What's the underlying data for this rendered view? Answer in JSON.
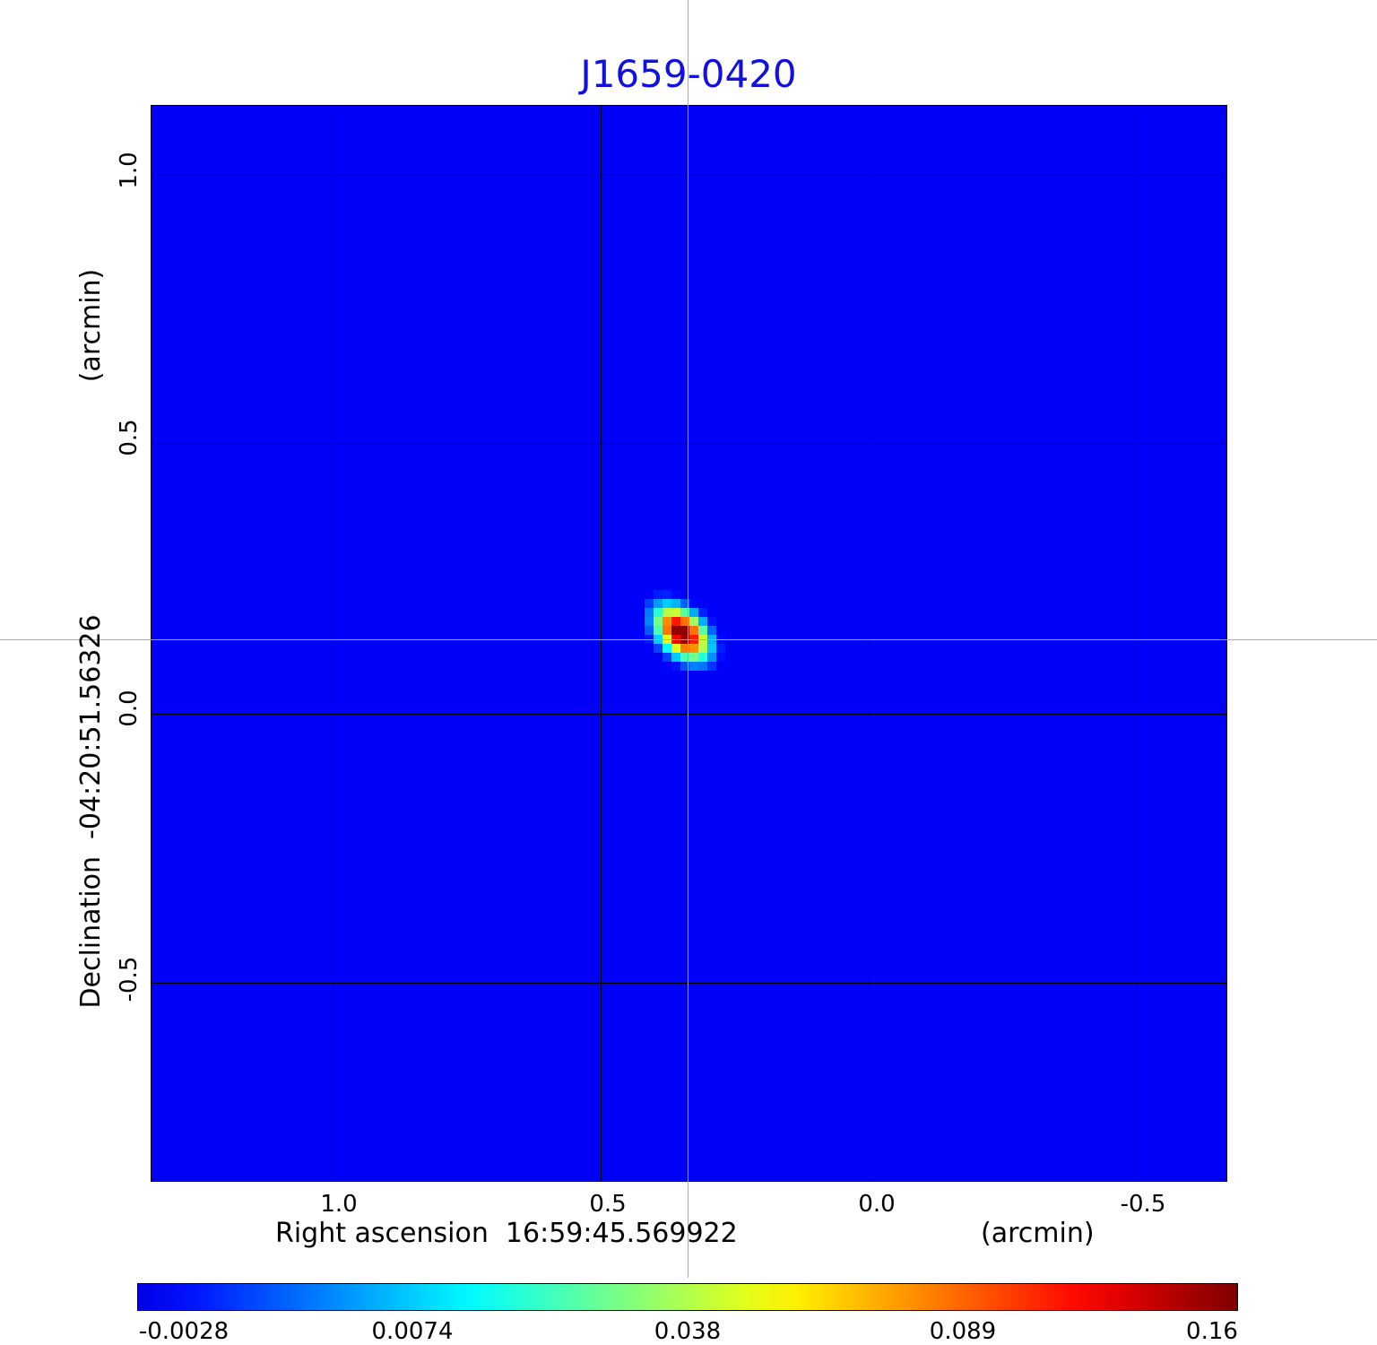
{
  "chart_data": {
    "type": "heatmap",
    "title": "J1659-0420",
    "xlabel": "Right ascension  16:59:45.569922",
    "xunit": "(arcmin)",
    "ylabel": "Declination  -04:20:51.56326",
    "yunit": "(arcmin)",
    "x_ticks": [
      "1.0",
      "0.5",
      "0.0",
      "-0.5"
    ],
    "x_tick_values": [
      1.0,
      0.5,
      0.0,
      -0.5
    ],
    "y_ticks": [
      "1.0",
      "0.5",
      "0.0",
      "-0.5"
    ],
    "y_tick_values": [
      1.0,
      0.5,
      0.0,
      -0.5
    ],
    "xlim": [
      1.34,
      -0.67
    ],
    "ylim": [
      -0.87,
      1.13
    ],
    "grid": true,
    "crosshair": {
      "x": 0.34,
      "y": 0.14,
      "color": "#33ff33"
    },
    "source_peak": {
      "x": 0.35,
      "y": 0.15,
      "value": 0.16
    },
    "background_value": 0.003,
    "colormap": "jet",
    "colorbar": {
      "ticks": [
        "-0.0028",
        "0.0074",
        "0.038",
        "0.089",
        "0.16"
      ],
      "range": [
        -0.0028,
        0.16
      ],
      "placement": "bottom"
    }
  }
}
